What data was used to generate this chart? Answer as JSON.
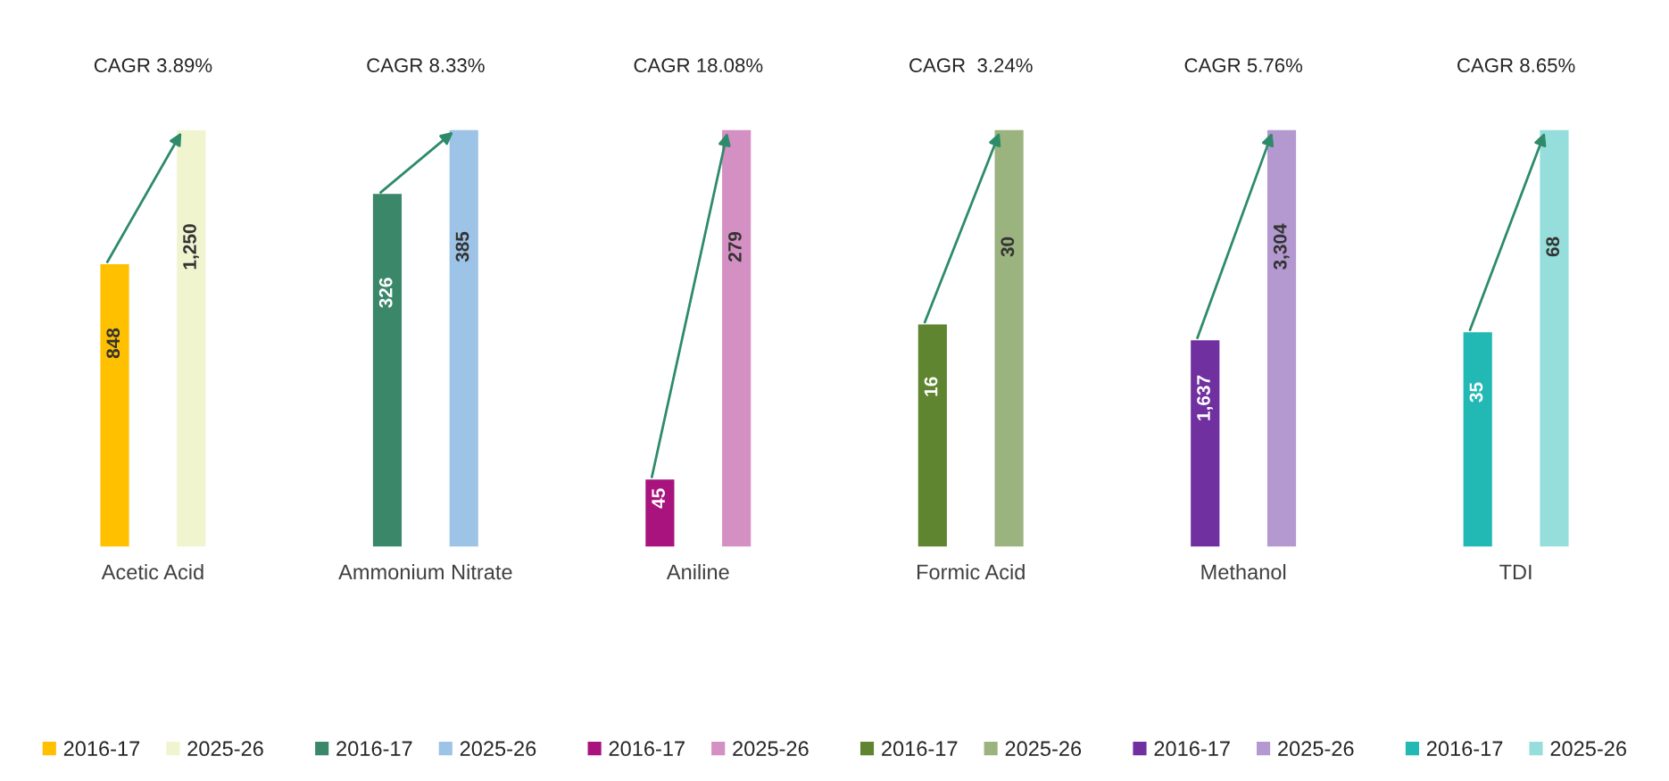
{
  "chart_data": [
    {
      "type": "bar",
      "title": "CAGR 3.89%",
      "categories": [
        "Acetic Acid"
      ],
      "data_labels": true,
      "legend": "bottom",
      "grid": false,
      "series": [
        {
          "name": "2016-17",
          "color": "#ffc000",
          "values": [
            848
          ]
        },
        {
          "name": "2025-26",
          "color": "#f0f5d0",
          "values": [
            1250
          ],
          "value_labels": [
            "1,250"
          ]
        }
      ]
    },
    {
      "type": "bar",
      "title": "CAGR 8.33%",
      "categories": [
        "Ammonium Nitrate"
      ],
      "data_labels": true,
      "legend": "bottom",
      "grid": false,
      "series": [
        {
          "name": "2016-17",
          "color": "#3a876a",
          "values": [
            326
          ]
        },
        {
          "name": "2025-26",
          "color": "#9dc3e6",
          "values": [
            385
          ]
        }
      ]
    },
    {
      "type": "bar",
      "title": "CAGR 18.08%",
      "categories": [
        "Aniline"
      ],
      "data_labels": true,
      "legend": "bottom",
      "grid": false,
      "series": [
        {
          "name": "2016-17",
          "color": "#a8137e",
          "values": [
            45
          ]
        },
        {
          "name": "2025-26",
          "color": "#d48fc3",
          "values": [
            279
          ]
        }
      ]
    },
    {
      "type": "bar",
      "title": "CAGR  3.24%",
      "categories": [
        "Formic Acid"
      ],
      "data_labels": true,
      "legend": "bottom",
      "grid": false,
      "series": [
        {
          "name": "2016-17",
          "color": "#5f8530",
          "values": [
            16
          ]
        },
        {
          "name": "2025-26",
          "color": "#9bb37e",
          "values": [
            30
          ]
        }
      ]
    },
    {
      "type": "bar",
      "title": "CAGR 5.76%",
      "categories": [
        "Methanol"
      ],
      "data_labels": true,
      "legend": "bottom",
      "grid": false,
      "series": [
        {
          "name": "2016-17",
          "color": "#7030a0",
          "values": [
            1637
          ],
          "value_labels": [
            "1,637"
          ]
        },
        {
          "name": "2025-26",
          "color": "#b499d0",
          "values": [
            3304
          ],
          "value_labels": [
            "3,304"
          ]
        }
      ]
    },
    {
      "type": "bar",
      "title": "CAGR 8.65%",
      "categories": [
        "TDI"
      ],
      "data_labels": true,
      "legend": "bottom",
      "grid": false,
      "series": [
        {
          "name": "2016-17",
          "color": "#22b8b4",
          "values": [
            35
          ]
        },
        {
          "name": "2025-26",
          "color": "#96dedb",
          "values": [
            68
          ]
        }
      ]
    }
  ]
}
